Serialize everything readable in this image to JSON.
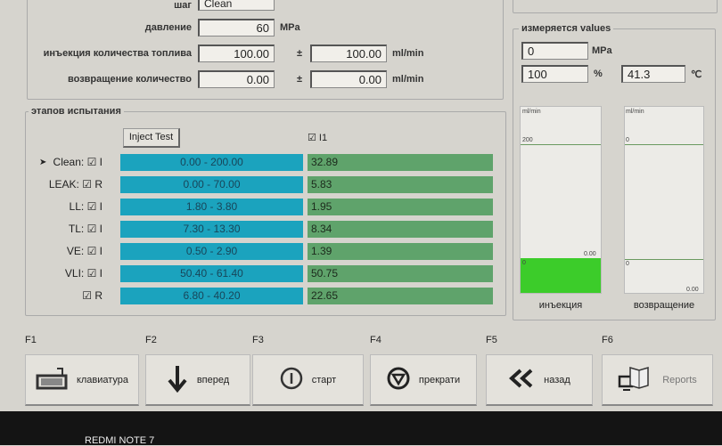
{
  "params": {
    "step_label": "шаг",
    "step_value": "Clean",
    "pressure_label": "давление",
    "pressure_value": "60",
    "pressure_unit": "MPa",
    "injection_label": "инъекция количества топлива",
    "injection_value": "100.00",
    "injection_tol": "100.00",
    "injection_unit": "ml/min",
    "return_label": "возвращение количество",
    "return_value": "0.00",
    "return_tol": "0.00",
    "return_unit": "ml/min",
    "pm": "±"
  },
  "measured": {
    "title": "измеряется values",
    "pressure": "0",
    "pressure_unit": "MPa",
    "percent": "100",
    "percent_unit": "%",
    "temp": "41.3",
    "temp_unit": "℃",
    "inj_chart": {
      "unit": "ml/min",
      "top": "200",
      "value": "0.00",
      "zero": "0",
      "label": "инъекция",
      "fill_color": "#3ccc2a"
    },
    "ret_chart": {
      "unit": "ml/min",
      "top": "0",
      "value": "0.00",
      "zero": "0",
      "label": "возвращение"
    }
  },
  "stages": {
    "title": "этапов испытания",
    "inject_test": "Inject Test",
    "column_check": "☑ I1",
    "rows": [
      {
        "label": "Clean: ☑ I",
        "range": "0.00 - 200.00",
        "value": "32.89",
        "current": true
      },
      {
        "label": "LEAK: ☑ R",
        "range": "0.00 - 70.00",
        "value": "5.83"
      },
      {
        "label": "LL: ☑ I",
        "range": "1.80 - 3.80",
        "value": "1.95"
      },
      {
        "label": "TL: ☑ I",
        "range": "7.30 - 13.30",
        "value": "8.34"
      },
      {
        "label": "VE: ☑ I",
        "range": "0.50 - 2.90",
        "value": "1.39"
      },
      {
        "label": "VLI: ☑ I",
        "range": "50.40 - 61.40",
        "value": "50.75"
      },
      {
        "label": "☑ R",
        "range": "6.80 - 40.20",
        "value": "22.65"
      }
    ]
  },
  "fkeys": [
    {
      "key": "F1",
      "label": "клавиатура",
      "icon": "keyboard-icon"
    },
    {
      "key": "F2",
      "label": "вперед",
      "icon": "arrow-down-icon"
    },
    {
      "key": "F3",
      "label": "старт",
      "icon": "power-icon"
    },
    {
      "key": "F4",
      "label": "прекрати",
      "icon": "stop-icon"
    },
    {
      "key": "F5",
      "label": "назад",
      "icon": "double-chevron-left-icon"
    },
    {
      "key": "F6",
      "label": "Reports",
      "icon": "reports-icon"
    }
  ],
  "watermark": "REDMI NOTE 7"
}
